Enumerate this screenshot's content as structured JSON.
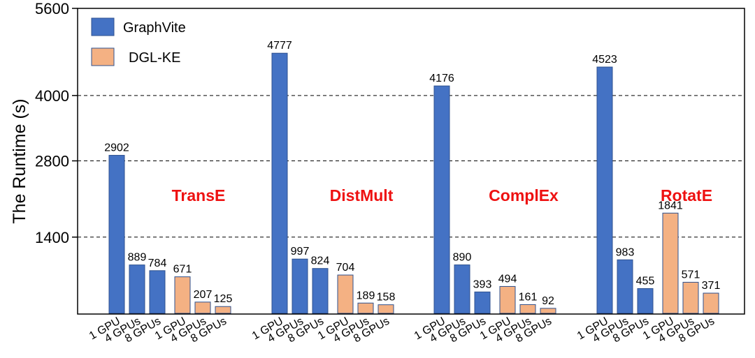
{
  "chart_data": {
    "type": "bar",
    "ylabel": "The Runtime (s)",
    "ylim": [
      0,
      5600
    ],
    "yticks": [
      1400,
      2800,
      4000,
      5600
    ],
    "grid": "horizontal dashed at y ticks",
    "legend_position": "top-left",
    "groups": [
      "TransE",
      "DistMult",
      "ComplEx",
      "RotatE"
    ],
    "categories": [
      "1 GPU",
      "4 GPUs",
      "8 GPUs"
    ],
    "series": [
      {
        "name": "GraphVite",
        "color": "#4472c4",
        "values": {
          "TransE": [
            2902,
            889,
            784
          ],
          "DistMult": [
            4777,
            997,
            824
          ],
          "ComplEx": [
            4176,
            890,
            393
          ],
          "RotatE": [
            4523,
            983,
            455
          ]
        }
      },
      {
        "name": "DGL-KE",
        "color": "#f4b183",
        "values": {
          "TransE": [
            671,
            207,
            125
          ],
          "DistMult": [
            704,
            189,
            158
          ],
          "ComplEx": [
            494,
            161,
            92
          ],
          "RotatE": [
            1841,
            571,
            371
          ]
        }
      }
    ],
    "group_label_color": "#ee1111"
  }
}
